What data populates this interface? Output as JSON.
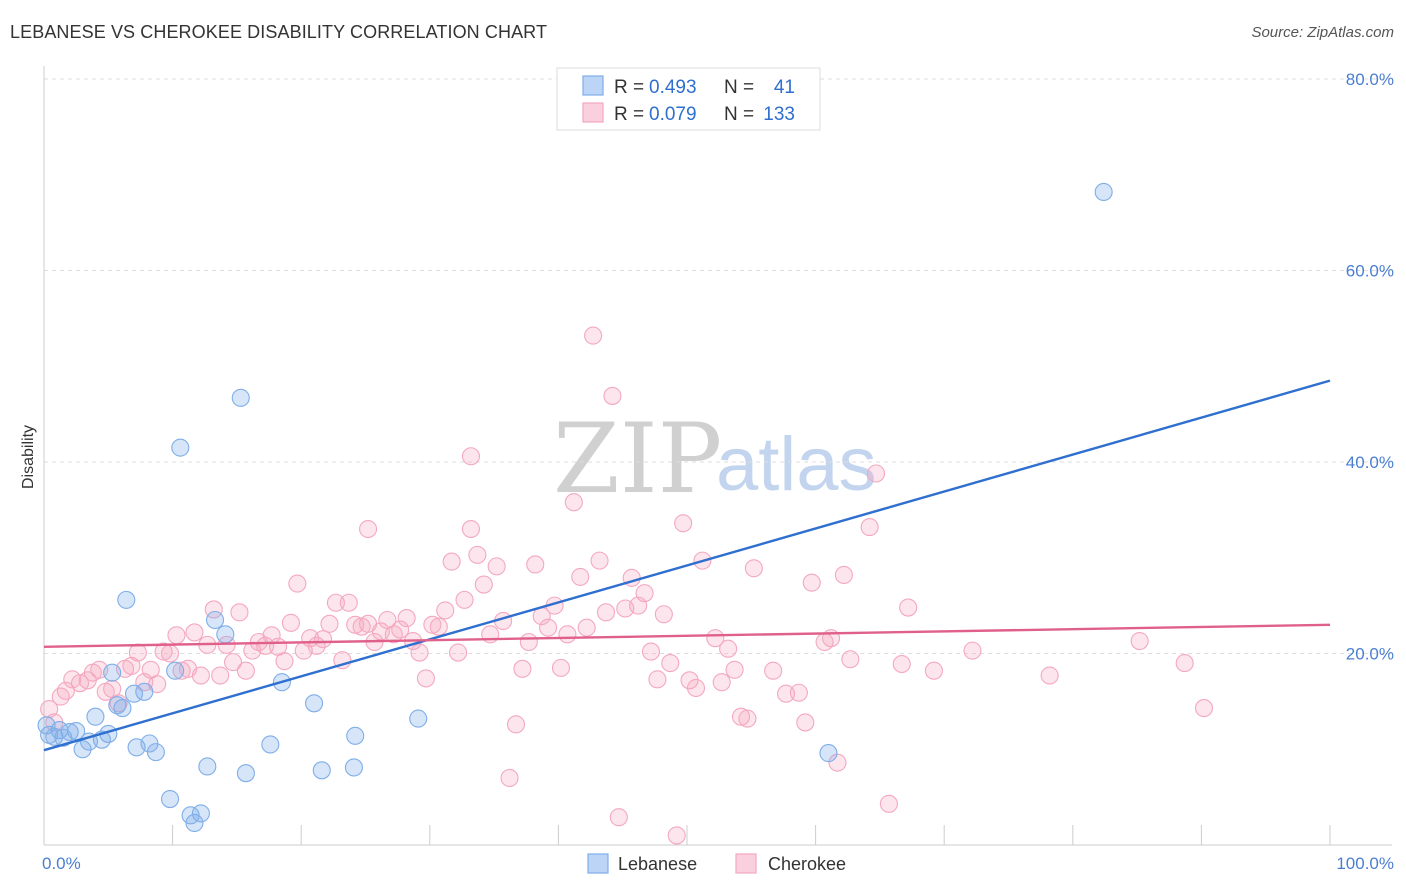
{
  "title": "LEBANESE VS CHEROKEE DISABILITY CORRELATION CHART",
  "source": "Source: ZipAtlas.com",
  "watermark": {
    "zip": "ZIP",
    "atlas": "atlas"
  },
  "chart_data": {
    "type": "scatter",
    "xlabel": "",
    "ylabel": "Disability",
    "xlim": [
      0,
      100
    ],
    "ylim": [
      0,
      80
    ],
    "x_tick_labels": [
      "0.0%",
      "100.0%"
    ],
    "y_ticks": [
      20,
      40,
      60,
      80
    ],
    "y_tick_labels": [
      "20.0%",
      "40.0%",
      "60.0%",
      "80.0%"
    ],
    "grid": true,
    "legend_placement": "top-center",
    "stats": [
      {
        "r_label": "R =",
        "r": "0.493",
        "n_label": "N =",
        "n": "41"
      },
      {
        "r_label": "R =",
        "r": "0.079",
        "n_label": "N =",
        "n": "133"
      }
    ],
    "series": [
      {
        "name": "Lebanese",
        "color": "#7faee8",
        "line_color": "#2f6fcf",
        "trend": {
          "x": [
            0,
            100
          ],
          "y": [
            9.9,
            48.5
          ]
        },
        "points": [
          [
            0.4,
            11.5
          ],
          [
            0.8,
            11.3
          ],
          [
            1.2,
            12.0
          ],
          [
            1.5,
            11.2
          ],
          [
            2.0,
            11.8
          ],
          [
            2.5,
            11.9
          ],
          [
            3.0,
            10.0
          ],
          [
            3.5,
            10.8
          ],
          [
            4.0,
            13.4
          ],
          [
            4.5,
            11.0
          ],
          [
            5.0,
            11.6
          ],
          [
            5.3,
            18.0
          ],
          [
            5.7,
            14.6
          ],
          [
            6.1,
            14.3
          ],
          [
            6.4,
            25.6
          ],
          [
            7.0,
            15.8
          ],
          [
            7.2,
            10.2
          ],
          [
            7.8,
            16.0
          ],
          [
            8.2,
            10.6
          ],
          [
            8.7,
            9.7
          ],
          [
            9.8,
            4.8
          ],
          [
            10.2,
            18.2
          ],
          [
            10.6,
            41.5
          ],
          [
            11.4,
            3.1
          ],
          [
            11.7,
            2.3
          ],
          [
            12.2,
            3.3
          ],
          [
            12.7,
            8.2
          ],
          [
            13.3,
            23.5
          ],
          [
            14.1,
            22.0
          ],
          [
            15.3,
            46.7
          ],
          [
            15.7,
            7.5
          ],
          [
            17.6,
            10.5
          ],
          [
            18.5,
            17.0
          ],
          [
            21.0,
            14.8
          ],
          [
            21.6,
            7.8
          ],
          [
            24.1,
            8.1
          ],
          [
            24.2,
            11.4
          ],
          [
            29.1,
            13.2
          ],
          [
            61.0,
            9.6
          ],
          [
            82.4,
            68.2
          ],
          [
            0.2,
            12.5
          ]
        ]
      },
      {
        "name": "Cherokee",
        "color": "#f4a8c0",
        "line_color": "#e0608c",
        "trend": {
          "x": [
            0,
            100
          ],
          "y": [
            20.7,
            23.0
          ]
        },
        "points": [
          [
            0.4,
            14.2
          ],
          [
            0.8,
            12.8
          ],
          [
            1.3,
            15.5
          ],
          [
            1.7,
            16.1
          ],
          [
            2.2,
            17.3
          ],
          [
            2.8,
            16.9
          ],
          [
            3.4,
            17.2
          ],
          [
            3.8,
            18.0
          ],
          [
            4.3,
            18.3
          ],
          [
            4.8,
            16.0
          ],
          [
            5.3,
            16.3
          ],
          [
            5.8,
            14.8
          ],
          [
            6.3,
            18.4
          ],
          [
            6.8,
            18.7
          ],
          [
            7.3,
            20.1
          ],
          [
            7.8,
            17.0
          ],
          [
            8.3,
            18.3
          ],
          [
            8.8,
            16.8
          ],
          [
            9.3,
            20.2
          ],
          [
            9.8,
            20.0
          ],
          [
            10.3,
            21.9
          ],
          [
            10.7,
            18.2
          ],
          [
            11.2,
            18.4
          ],
          [
            11.7,
            22.2
          ],
          [
            12.2,
            17.7
          ],
          [
            12.7,
            20.9
          ],
          [
            13.2,
            24.6
          ],
          [
            13.7,
            17.7
          ],
          [
            14.2,
            20.9
          ],
          [
            14.7,
            19.1
          ],
          [
            15.2,
            24.3
          ],
          [
            15.7,
            18.2
          ],
          [
            16.2,
            20.3
          ],
          [
            16.7,
            21.2
          ],
          [
            17.2,
            20.8
          ],
          [
            17.7,
            21.9
          ],
          [
            18.2,
            20.7
          ],
          [
            18.7,
            19.2
          ],
          [
            19.2,
            23.2
          ],
          [
            19.7,
            27.3
          ],
          [
            20.2,
            20.3
          ],
          [
            20.7,
            21.6
          ],
          [
            21.2,
            20.8
          ],
          [
            21.7,
            21.5
          ],
          [
            22.2,
            23.1
          ],
          [
            22.7,
            25.3
          ],
          [
            23.2,
            19.3
          ],
          [
            23.7,
            25.3
          ],
          [
            24.2,
            23.0
          ],
          [
            24.7,
            22.8
          ],
          [
            25.2,
            23.1
          ],
          [
            25.7,
            21.2
          ],
          [
            26.2,
            22.3
          ],
          [
            26.7,
            23.5
          ],
          [
            27.2,
            22.0
          ],
          [
            27.7,
            22.5
          ],
          [
            28.2,
            23.7
          ],
          [
            28.7,
            21.3
          ],
          [
            29.2,
            20.1
          ],
          [
            29.7,
            17.4
          ],
          [
            30.2,
            23.0
          ],
          [
            30.7,
            22.8
          ],
          [
            31.2,
            24.5
          ],
          [
            31.7,
            29.6
          ],
          [
            32.2,
            20.1
          ],
          [
            32.7,
            25.6
          ],
          [
            33.2,
            40.6
          ],
          [
            33.7,
            30.3
          ],
          [
            34.2,
            27.2
          ],
          [
            34.7,
            22.0
          ],
          [
            35.2,
            29.1
          ],
          [
            35.7,
            23.4
          ],
          [
            36.2,
            7.0
          ],
          [
            36.7,
            12.6
          ],
          [
            37.2,
            18.4
          ],
          [
            37.7,
            21.2
          ],
          [
            38.2,
            29.3
          ],
          [
            38.7,
            23.9
          ],
          [
            39.2,
            22.7
          ],
          [
            39.7,
            25.0
          ],
          [
            40.2,
            18.5
          ],
          [
            40.7,
            22.0
          ],
          [
            41.2,
            35.8
          ],
          [
            41.7,
            28.0
          ],
          [
            42.2,
            22.7
          ],
          [
            42.7,
            53.2
          ],
          [
            43.2,
            29.7
          ],
          [
            43.7,
            24.3
          ],
          [
            44.2,
            46.9
          ],
          [
            44.7,
            2.9
          ],
          [
            45.2,
            24.7
          ],
          [
            45.7,
            27.9
          ],
          [
            46.2,
            25.0
          ],
          [
            46.7,
            26.3
          ],
          [
            47.2,
            20.2
          ],
          [
            47.7,
            17.3
          ],
          [
            48.2,
            24.1
          ],
          [
            48.7,
            19.0
          ],
          [
            49.2,
            1.0
          ],
          [
            49.7,
            33.6
          ],
          [
            50.2,
            17.2
          ],
          [
            50.7,
            16.4
          ],
          [
            51.2,
            29.7
          ],
          [
            52.2,
            21.6
          ],
          [
            52.7,
            17.0
          ],
          [
            53.2,
            20.5
          ],
          [
            53.7,
            18.3
          ],
          [
            54.2,
            13.4
          ],
          [
            54.7,
            13.2
          ],
          [
            55.2,
            28.9
          ],
          [
            56.7,
            18.2
          ],
          [
            57.7,
            15.8
          ],
          [
            58.7,
            15.9
          ],
          [
            59.2,
            12.8
          ],
          [
            59.7,
            27.4
          ],
          [
            60.7,
            21.2
          ],
          [
            61.2,
            21.6
          ],
          [
            61.7,
            8.6
          ],
          [
            62.2,
            28.2
          ],
          [
            62.7,
            19.4
          ],
          [
            64.2,
            33.2
          ],
          [
            64.7,
            38.8
          ],
          [
            65.7,
            4.3
          ],
          [
            66.7,
            18.9
          ],
          [
            67.2,
            24.8
          ],
          [
            69.2,
            18.2
          ],
          [
            72.2,
            20.3
          ],
          [
            78.2,
            17.7
          ],
          [
            85.2,
            21.3
          ],
          [
            88.7,
            19.0
          ],
          [
            90.2,
            14.3
          ],
          [
            33.2,
            33.0
          ],
          [
            25.2,
            33.0
          ]
        ]
      }
    ]
  }
}
